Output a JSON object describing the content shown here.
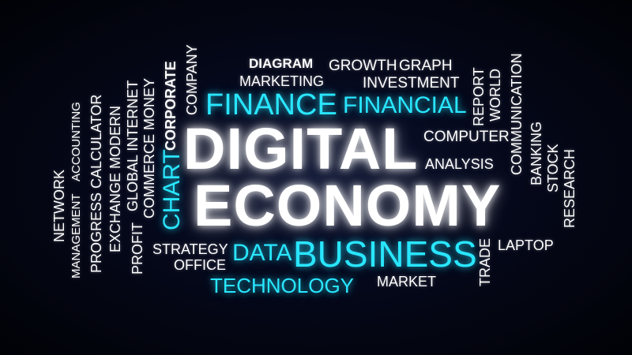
{
  "words": {
    "digital": "DIGITAL",
    "economy": "ECONOMY",
    "finance": "FINANCE",
    "financial": "FINANCIAL",
    "business": "BUSINESS",
    "technology": "TECHNOLOGY",
    "data": "DATA",
    "chart": "CHART",
    "diagram": "DIAGRAM",
    "growth": "GROWTH",
    "graph": "GRAPH",
    "marketing": "MARKETING",
    "investment": "INVESTMENT",
    "computer": "COMPUTER",
    "analysis": "ANALYSIS",
    "strategy": "STRATEGY",
    "office": "OFFICE",
    "market": "MARKET",
    "laptop": "LAPTOP",
    "trade": "TRADE",
    "report": "REPORT",
    "world": "WORLD",
    "communication": "COMMUNICATION",
    "banking": "BANKING",
    "stock": "STOCK",
    "research": "RESEARCH",
    "company": "COMPANY",
    "corporate": "CORPORATE",
    "commerce_money": "COMMERCE MONEY",
    "global_internet": "GLOBAL INTERNET",
    "profit": "PROFIT",
    "exchange_modern": "EXCHANGE MODERN",
    "progress_calculator": "PROGRESS CALCULATOR",
    "accounting": "ACCOUNTING",
    "management": "MANAGEMENT",
    "network": "NETWORK"
  },
  "colors": {
    "background": "#02030a",
    "accent_cyan": "#29e6ff",
    "text_white": "#ffffff"
  }
}
